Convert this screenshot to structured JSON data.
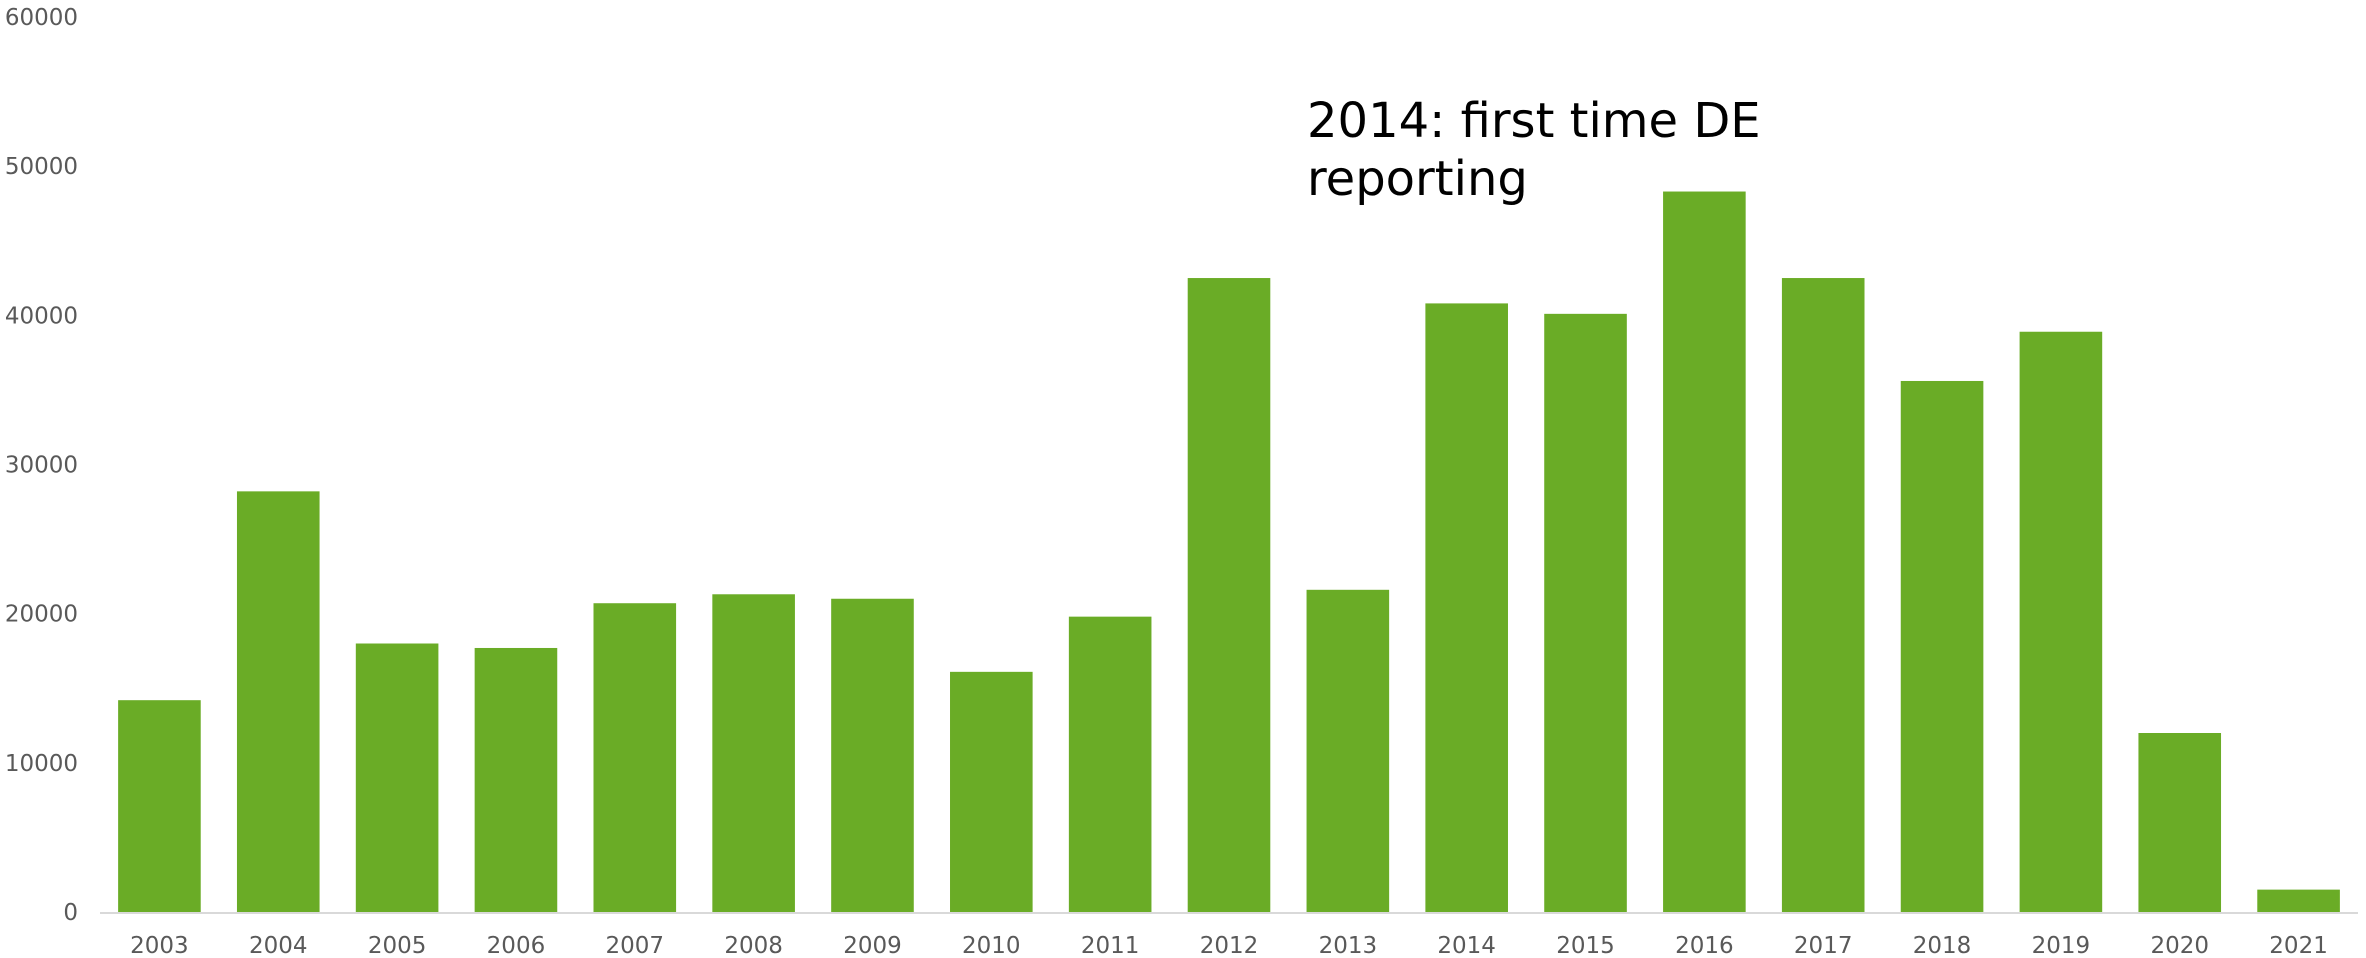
{
  "chart_data": {
    "type": "bar",
    "title": "",
    "xlabel": "",
    "ylabel": "",
    "ylim": [
      0,
      60000
    ],
    "yticks": [
      "0",
      "10000",
      "20000",
      "30000",
      "40000",
      "50000",
      "60000"
    ],
    "grid": false,
    "categories": [
      "2003",
      "2004",
      "2005",
      "2006",
      "2007",
      "2008",
      "2009",
      "2010",
      "2011",
      "2012",
      "2013",
      "2014",
      "2015",
      "2016",
      "2017",
      "2018",
      "2019",
      "2020",
      "2021"
    ],
    "values": [
      14200,
      28200,
      18000,
      17700,
      20700,
      21300,
      21000,
      16100,
      19800,
      42500,
      21600,
      40800,
      40100,
      48300,
      42500,
      35600,
      38900,
      12000,
      1500
    ],
    "bar_color": "#6aac26",
    "axis_color": "#d9d9d9",
    "annotation": {
      "line1": "2014: first time DE",
      "line2": "reporting"
    }
  }
}
